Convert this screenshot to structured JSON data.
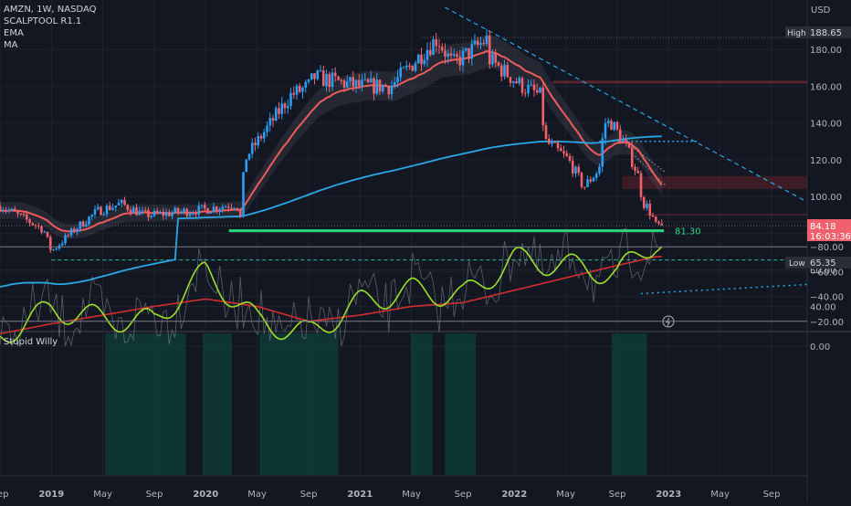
{
  "legend": {
    "symbol_line": "AMZN, 1W, NASDAQ",
    "indicators": [
      "SCALPTOOL R1.1",
      "EMA",
      "MA"
    ]
  },
  "price_axis": {
    "currency": "USD",
    "ticks": [
      "180.00",
      "160.00",
      "140.00",
      "120.00",
      "100.00",
      "80.00",
      "60.00",
      "40.00"
    ],
    "high_label": "High",
    "high_value": "188.65",
    "low_label": "Low",
    "low_value": "65.35",
    "last_price": "84.18",
    "countdown": "16:03:36",
    "support_label": "81.30"
  },
  "oscillator": {
    "name": "Stupid Willy",
    "ticks": [
      "0.00",
      "−20.00",
      "−40.00",
      "−60.00",
      "−80.00",
      "−100.00"
    ]
  },
  "time_axis": [
    "Sep",
    "2019",
    "May",
    "Sep",
    "2020",
    "May",
    "Sep",
    "2021",
    "May",
    "Sep",
    "2022",
    "May",
    "Sep",
    "2023",
    "May",
    "Sep"
  ],
  "bold_time_labels": [
    "2019",
    "2020",
    "2021",
    "2022",
    "2023"
  ],
  "colors": {
    "background": "#131722",
    "up_candle": "#2a9df4",
    "down_candle": "#f0616d",
    "ema_red": "#f05b5b",
    "ma_blue": "#2aa8e6",
    "support_green": "#2bd97c",
    "osc_fast": "#9be02a",
    "osc_slow": "#d12f2f",
    "osc_zone": "#0f3f3b",
    "text": "#b2b5be"
  },
  "chart_data": [
    {
      "type": "candlestick",
      "title": "AMZN, 1W, NASDAQ",
      "timeframe": "1W",
      "ylim": [
        30,
        200
      ],
      "x": [
        "2019-09",
        "2020-01",
        "2020-04",
        "2020-09",
        "2021-01",
        "2021-07",
        "2021-11",
        "2022-03",
        "2022-06",
        "2022-08",
        "2022-11",
        "2022-12"
      ],
      "close": [
        90,
        93,
        120,
        160,
        160,
        186,
        175,
        155,
        110,
        140,
        96,
        84.18
      ],
      "series": [
        {
          "name": "EMA"
        },
        {
          "name": "MA"
        }
      ],
      "high": 188.65,
      "low": 65.35,
      "last": 84.18,
      "support": 81.3
    },
    {
      "type": "line",
      "title": "Stupid Willy",
      "ylim": [
        -105,
        5
      ],
      "x": [
        "2018-09",
        "2019-01",
        "2019-05",
        "2019-09",
        "2020-01",
        "2020-05",
        "2020-09",
        "2021-01",
        "2021-05",
        "2021-09",
        "2022-01",
        "2022-05",
        "2022-09",
        "2022-12"
      ],
      "series": [
        {
          "values": [
            -8,
            -30,
            -22,
            -20,
            -60,
            -20,
            -10,
            -35,
            -45,
            -40,
            -70,
            -65,
            -58,
            -85
          ]
        },
        {
          "values": [
            -10,
            -18,
            -25,
            -32,
            -38,
            -32,
            -20,
            -25,
            -32,
            -35,
            -45,
            -55,
            -65,
            -72
          ]
        }
      ]
    }
  ]
}
